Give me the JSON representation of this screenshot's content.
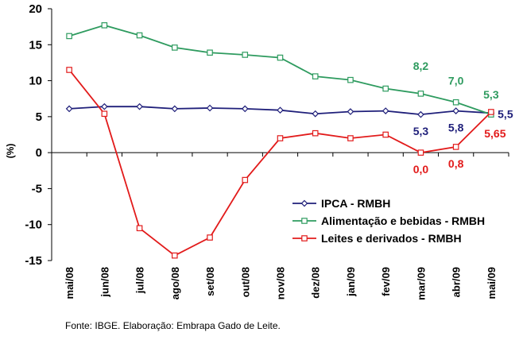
{
  "chart_data": {
    "type": "line",
    "categories": [
      "mai/08",
      "jun/08",
      "jul/08",
      "ago/08",
      "set/08",
      "out/08",
      "nov/08",
      "dez/08",
      "jan/09",
      "fev/09",
      "mar/09",
      "abr/09",
      "mai/09"
    ],
    "ylabel": "(%)",
    "ylim": [
      -15,
      20
    ],
    "yticks": [
      20,
      15,
      10,
      5,
      0,
      -5,
      -10,
      -15
    ],
    "grid": false,
    "legend_position": "right",
    "series": [
      {
        "name": "IPCA - RMBH",
        "color": "#1F1F7A",
        "marker": "diamond",
        "values": [
          6.1,
          6.4,
          6.4,
          6.1,
          6.2,
          6.1,
          5.9,
          5.4,
          5.7,
          5.8,
          5.3,
          5.8,
          5.5
        ]
      },
      {
        "name": "Alimentação e bebidas - RMBH",
        "color": "#2E9B5F",
        "marker": "square",
        "values": [
          16.2,
          17.7,
          16.3,
          14.6,
          13.9,
          13.6,
          13.2,
          10.6,
          10.1,
          8.9,
          8.2,
          7.0,
          5.3
        ]
      },
      {
        "name": "Leites e derivados - RMBH",
        "color": "#E21B1B",
        "marker": "square",
        "values": [
          11.5,
          5.4,
          -10.5,
          -14.3,
          -11.8,
          -3.8,
          2.0,
          2.7,
          2.0,
          2.5,
          0.0,
          0.8,
          5.65
        ]
      }
    ],
    "annotations": [
      {
        "text": "8,2",
        "series": 1,
        "index": 10,
        "color": "#2E9B5F",
        "dx": 0,
        "dy": -30
      },
      {
        "text": "7,0",
        "series": 1,
        "index": 11,
        "color": "#2E9B5F",
        "dx": 0,
        "dy": -22
      },
      {
        "text": "5,3",
        "series": 1,
        "index": 12,
        "color": "#2E9B5F",
        "dx": 0,
        "dy": -20
      },
      {
        "text": "5,3",
        "series": 0,
        "index": 10,
        "color": "#1F1F7A",
        "dx": 0,
        "dy": 26
      },
      {
        "text": "5,8",
        "series": 0,
        "index": 11,
        "color": "#1F1F7A",
        "dx": 0,
        "dy": 26
      },
      {
        "text": "5,5",
        "series": 0,
        "index": 12,
        "color": "#1F1F7A",
        "dx": 18,
        "dy": 6
      },
      {
        "text": "0,0",
        "series": 2,
        "index": 10,
        "color": "#E21B1B",
        "dx": 0,
        "dy": 26
      },
      {
        "text": "0,8",
        "series": 2,
        "index": 11,
        "color": "#E21B1B",
        "dx": 0,
        "dy": 26
      },
      {
        "text": "5,65",
        "series": 2,
        "index": 12,
        "color": "#E21B1B",
        "dx": 5,
        "dy": 32
      }
    ]
  },
  "source_note": "Fonte: IBGE. Elaboração: Embrapa Gado de Leite."
}
